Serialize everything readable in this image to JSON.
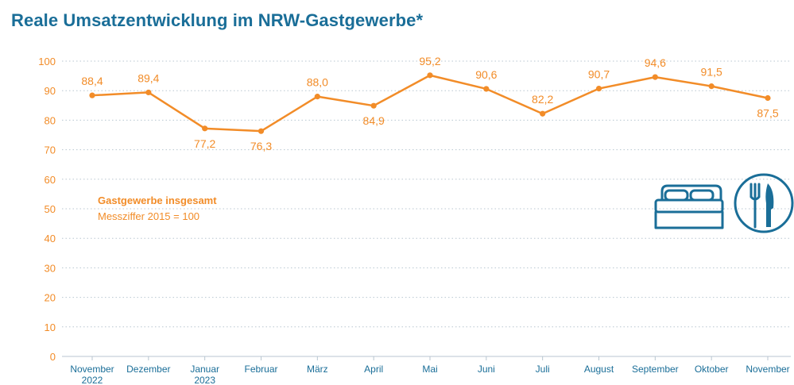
{
  "title": "Reale Umsatzentwicklung im NRW-Gastgewerbe*",
  "legend": {
    "series_title": "Gastgewerbe insgesamt",
    "series_subtitle": "Messziffer 2015 = 100"
  },
  "icons": [
    "bed-icon",
    "fork-knife-plate-icon"
  ],
  "colors": {
    "title": "#1a6e98",
    "series": "#f28c28",
    "axis_text": "#1a6e98",
    "grid": "#b8c6d0",
    "icons": "#1a6e98"
  },
  "chart_data": {
    "type": "line",
    "title": "Reale Umsatzentwicklung im NRW-Gastgewerbe*",
    "xlabel": "",
    "ylabel": "",
    "ylim": [
      0,
      100
    ],
    "yticks": [
      0,
      10,
      20,
      30,
      40,
      50,
      60,
      70,
      80,
      90,
      100
    ],
    "grid": true,
    "categories": [
      [
        "November",
        "2022"
      ],
      [
        "Dezember"
      ],
      [
        "Januar",
        "2023"
      ],
      [
        "Februar"
      ],
      [
        "März"
      ],
      [
        "April"
      ],
      [
        "Mai"
      ],
      [
        "Juni"
      ],
      [
        "Juli"
      ],
      [
        "August"
      ],
      [
        "September"
      ],
      [
        "Oktober"
      ],
      [
        "November"
      ]
    ],
    "series": [
      {
        "name": "Gastgewerbe insgesamt",
        "values": [
          88.4,
          89.4,
          77.2,
          76.3,
          88.0,
          84.9,
          95.2,
          90.6,
          82.2,
          90.7,
          94.6,
          91.5,
          87.5
        ],
        "labels": [
          "88,4",
          "89,4",
          "77,2",
          "76,3",
          "88,0",
          "84,9",
          "95,2",
          "90,6",
          "82,2",
          "90,7",
          "94,6",
          "91,5",
          "87,5"
        ],
        "label_positions": [
          "above",
          "above",
          "below",
          "below",
          "above",
          "below",
          "above",
          "above",
          "above",
          "above",
          "above",
          "above",
          "below"
        ]
      }
    ]
  }
}
